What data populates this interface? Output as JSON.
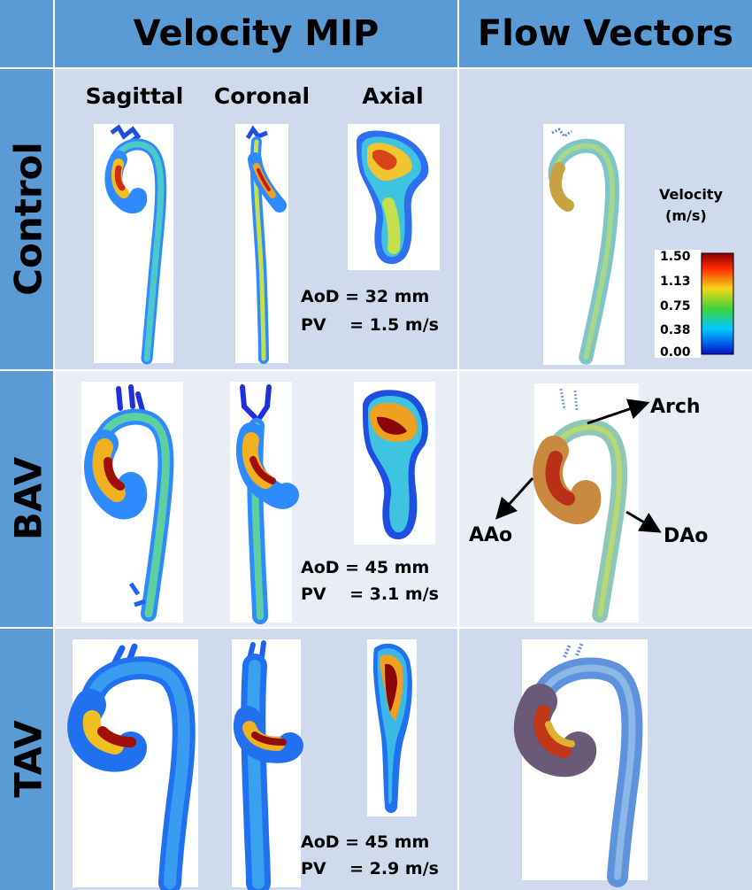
{
  "headers": {
    "velocity_mip": "Velocity MIP",
    "flow_vectors": "Flow Vectors"
  },
  "columns": [
    "Sagittal",
    "Coronal",
    "Axial"
  ],
  "rows": [
    {
      "label": "Control",
      "aod": "AoD = 32 mm",
      "pv": "PV    = 1.5 m/s"
    },
    {
      "label": "BAV",
      "aod": "AoD = 45 mm",
      "pv": "PV    = 3.1 m/s"
    },
    {
      "label": "TAV",
      "aod": "AoD = 45 mm",
      "pv": "PV    = 2.9 m/s"
    }
  ],
  "annotations": {
    "arch": "Arch",
    "aao": "AAo",
    "dao": "DAo"
  },
  "legend": {
    "title_line1": "Velocity",
    "title_line2": "(m/s)",
    "ticks": [
      "1.50",
      "1.13",
      "0.75",
      "0.38",
      "0.00"
    ]
  },
  "colors": {
    "header_bg": "#5b9bd5",
    "cell_bg": "#cfdaec",
    "vessel_low": "#1e7dff",
    "vessel_mid": "#f2d51c",
    "vessel_high": "#8b0000"
  }
}
